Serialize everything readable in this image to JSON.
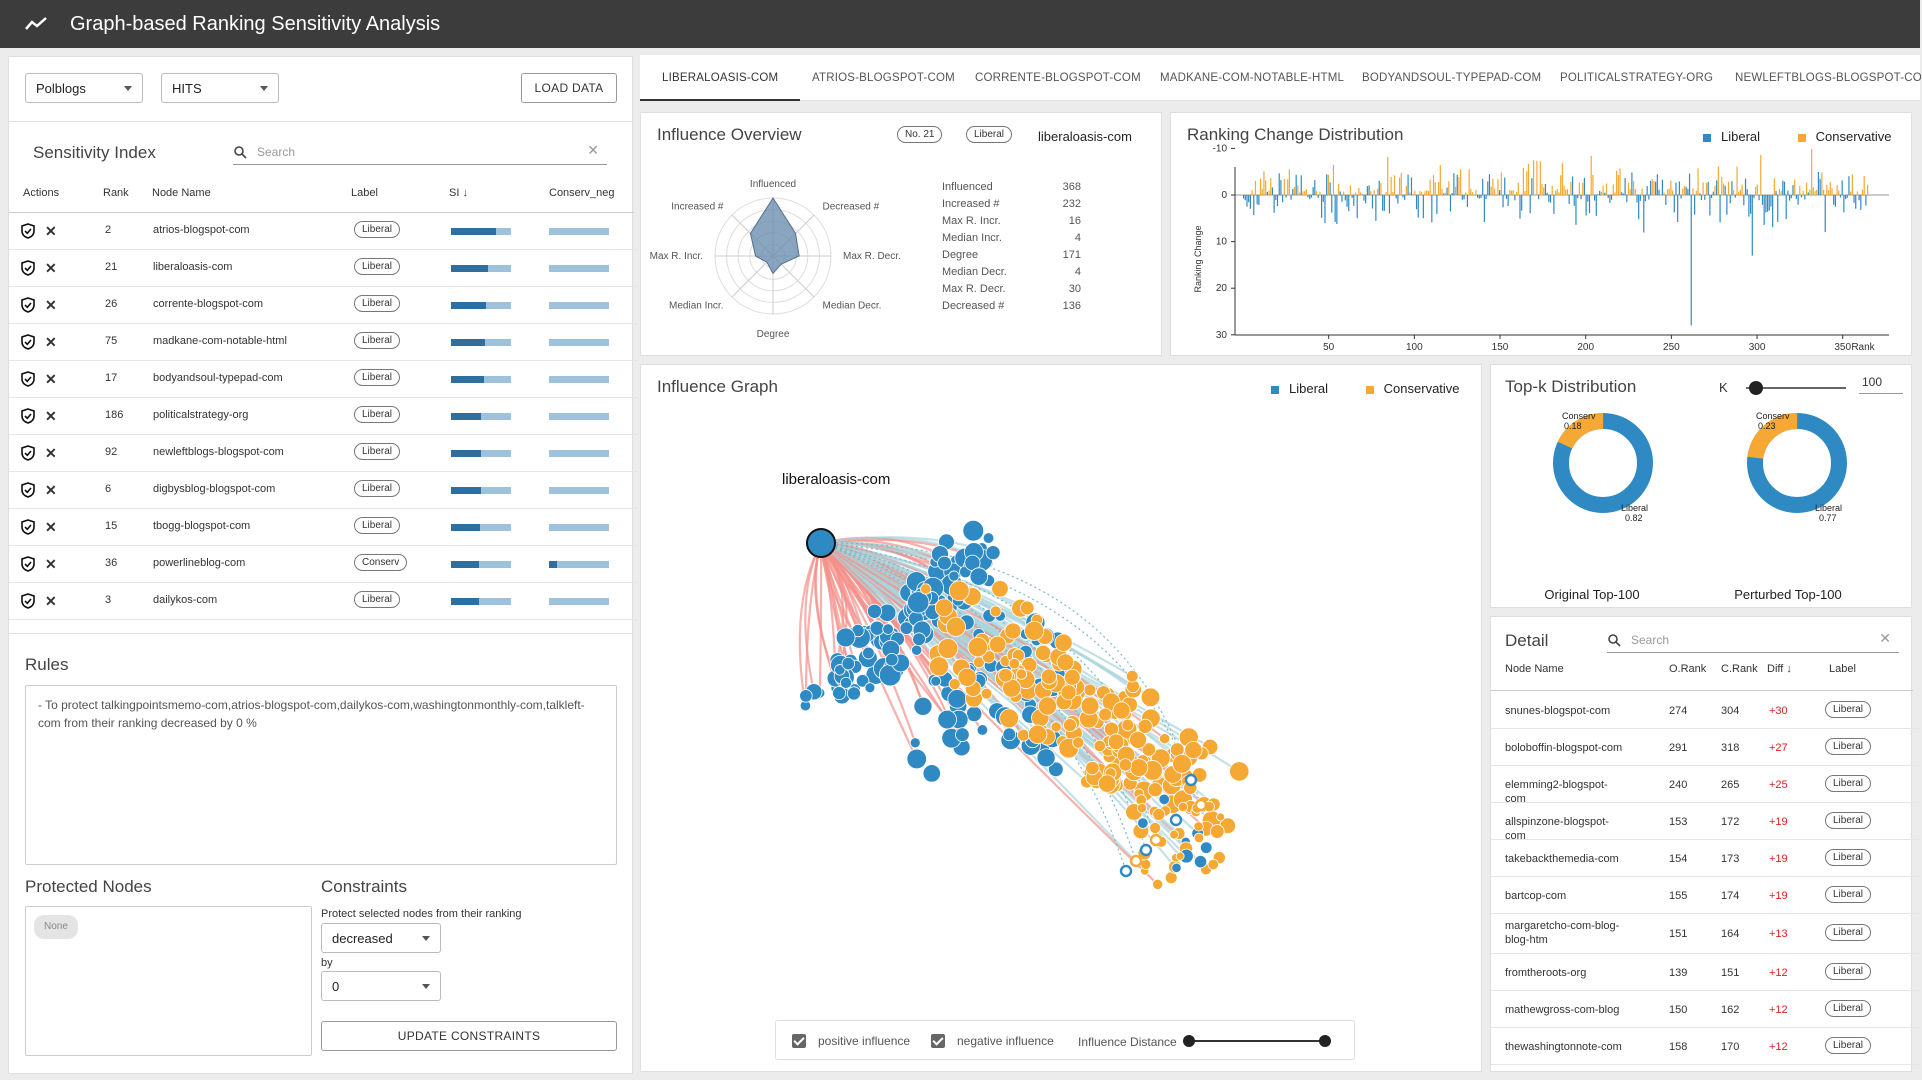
{
  "app": {
    "title": "Graph-based Ranking Sensitivity Analysis"
  },
  "colors": {
    "liberal": "#2f8ac4",
    "conservative": "#f5a833",
    "positive_edge": "#f4908a",
    "negative_edge": "#a9d4dc",
    "diff": "#e02020"
  },
  "controls": {
    "dataset": "Polblogs",
    "algorithm": "HITS",
    "load_label": "LOAD DATA"
  },
  "sensitivity": {
    "title": "Sensitivity Index",
    "search_placeholder": "Search",
    "columns": [
      "Actions",
      "Rank",
      "Node Name",
      "Label",
      "SI",
      "Conserv_neg"
    ],
    "rows": [
      {
        "rank": "2",
        "name": "atrios-blogspot-com",
        "label": "Liberal",
        "si": 0.75,
        "cn": 1.0
      },
      {
        "rank": "21",
        "name": "liberaloasis-com",
        "label": "Liberal",
        "si": 0.62,
        "cn": 1.0
      },
      {
        "rank": "26",
        "name": "corrente-blogspot-com",
        "label": "Liberal",
        "si": 0.58,
        "cn": 1.0
      },
      {
        "rank": "75",
        "name": "madkane-com-notable-html",
        "label": "Liberal",
        "si": 0.56,
        "cn": 1.0
      },
      {
        "rank": "17",
        "name": "bodyandsoul-typepad-com",
        "label": "Liberal",
        "si": 0.55,
        "cn": 1.0
      },
      {
        "rank": "186",
        "name": "politicalstrategy-org",
        "label": "Liberal",
        "si": 0.5,
        "cn": 1.0
      },
      {
        "rank": "92",
        "name": "newleftblogs-blogspot-com",
        "label": "Liberal",
        "si": 0.5,
        "cn": 1.0
      },
      {
        "rank": "6",
        "name": "digbysblog-blogspot-com",
        "label": "Liberal",
        "si": 0.5,
        "cn": 1.0
      },
      {
        "rank": "15",
        "name": "tbogg-blogspot-com",
        "label": "Liberal",
        "si": 0.48,
        "cn": 1.0
      },
      {
        "rank": "36",
        "name": "powerlineblog-com",
        "label": "Conserv",
        "si": 0.46,
        "cn": 0.14
      },
      {
        "rank": "3",
        "name": "dailykos-com",
        "label": "Liberal",
        "si": 0.46,
        "cn": 1.0
      }
    ]
  },
  "rules": {
    "title": "Rules",
    "text": "- To protect talkingpointsmemo-com,atrios-blogspot-com,dailykos-com,washingtonmonthly-com,talkleft-com from their ranking decreased by 0 %"
  },
  "protected": {
    "title": "Protected Nodes",
    "none_label": "None"
  },
  "constraints": {
    "title": "Constraints",
    "desc": "Protect selected nodes from their ranking",
    "direction": "decreased",
    "by_label": "by",
    "amount": "0",
    "update_label": "UPDATE CONSTRAINTS"
  },
  "tabs": [
    "LIBERALOASIS-COM",
    "ATRIOS-BLOGSPOT-COM",
    "CORRENTE-BLOGSPOT-COM",
    "MADKANE-COM-NOTABLE-HTML",
    "BODYANDSOUL-TYPEPAD-COM",
    "POLITICALSTRATEGY-ORG",
    "NEWLEFTBLOGS-BLOGSPOT-CO"
  ],
  "overview": {
    "title": "Influence Overview",
    "rank_badge": "No. 21",
    "label_badge": "Liberal",
    "node": "liberaloasis-com",
    "axes": [
      "Influenced",
      "Decreased #",
      "Max R. Decr.",
      "Median Decr.",
      "Degree",
      "Median Incr.",
      "Max R. Incr.",
      "Increased #"
    ],
    "radar_values": [
      1.0,
      0.55,
      0.45,
      0.2,
      0.3,
      0.15,
      0.3,
      0.55
    ],
    "stats": [
      {
        "k": "Influenced",
        "v": "368"
      },
      {
        "k": "Increased #",
        "v": "232"
      },
      {
        "k": "Max R. Incr.",
        "v": "16"
      },
      {
        "k": "Median Incr.",
        "v": "4"
      },
      {
        "k": "Degree",
        "v": "171"
      },
      {
        "k": "Median Decr.",
        "v": "4"
      },
      {
        "k": "Max R. Decr.",
        "v": "30"
      },
      {
        "k": "Decreased #",
        "v": "136"
      }
    ]
  },
  "ranking": {
    "title": "Ranking Change Distribution",
    "legend": [
      "Liberal",
      "Conservative"
    ],
    "ylabel": "Ranking Change",
    "y_ticks": [
      "-10",
      "0",
      "10",
      "20",
      "30"
    ],
    "x_ticks": [
      "50",
      "100",
      "150",
      "200",
      "250",
      "300",
      "350"
    ],
    "x_end_label": "Rank"
  },
  "graph": {
    "title": "Influence Graph",
    "legend": [
      "Liberal",
      "Conservative"
    ],
    "node_label": "liberaloasis-com",
    "positive_label": "positive influence",
    "negative_label": "negative influence",
    "distance_label": "Influence Distance"
  },
  "topk": {
    "title": "Top-k Distribution",
    "k_label": "K",
    "k_value": "100",
    "k_fraction": 0.1,
    "original": {
      "caption": "Original Top-100",
      "conserv_label": "Conserv",
      "conserv": "0.18",
      "liberal_label": "Liberal",
      "liberal": "0.82"
    },
    "perturbed": {
      "caption": "Perturbed Top-100",
      "conserv_label": "Conserv",
      "conserv": "0.23",
      "liberal_label": "Liberal",
      "liberal": "0.77"
    }
  },
  "detail": {
    "title": "Detail",
    "search_placeholder": "Search",
    "columns": [
      "Node Name",
      "O.Rank",
      "C.Rank",
      "Diff",
      "Label"
    ],
    "rows": [
      {
        "name": "snunes-blogspot-com",
        "o": "274",
        "c": "304",
        "d": "+30",
        "label": "Liberal"
      },
      {
        "name": "boloboffin-blogspot-com",
        "o": "291",
        "c": "318",
        "d": "+27",
        "label": "Liberal"
      },
      {
        "name": "elemming2-blogspot-com",
        "o": "240",
        "c": "265",
        "d": "+25",
        "label": "Liberal"
      },
      {
        "name": "allspinzone-blogspot-com",
        "o": "153",
        "c": "172",
        "d": "+19",
        "label": "Liberal"
      },
      {
        "name": "takebackthemedia-com",
        "o": "154",
        "c": "173",
        "d": "+19",
        "label": "Liberal"
      },
      {
        "name": "bartcop-com",
        "o": "155",
        "c": "174",
        "d": "+19",
        "label": "Liberal"
      },
      {
        "name": "margaretcho-com-blog-blog-htm",
        "o": "151",
        "c": "164",
        "d": "+13",
        "label": "Liberal"
      },
      {
        "name": "fromtheroots-org",
        "o": "139",
        "c": "151",
        "d": "+12",
        "label": "Liberal"
      },
      {
        "name": "mathewgross-com-blog",
        "o": "150",
        "c": "162",
        "d": "+12",
        "label": "Liberal"
      },
      {
        "name": "thewashingtonnote-com",
        "o": "158",
        "c": "170",
        "d": "+12",
        "label": "Liberal"
      }
    ]
  }
}
